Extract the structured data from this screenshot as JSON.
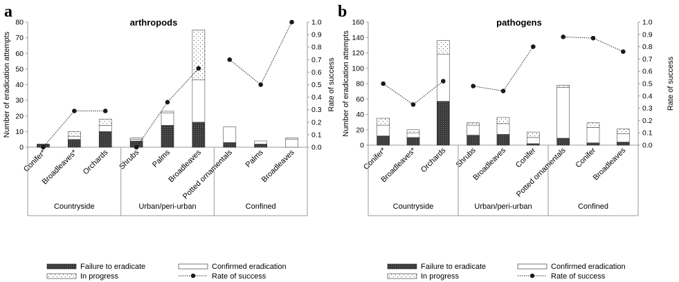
{
  "panels": [
    {
      "letter": "a",
      "title": "arthropods"
    },
    {
      "letter": "b",
      "title": "pathogens"
    }
  ],
  "legend": {
    "failure": "Failure to eradicate",
    "confirmed": "Confirmed eradication",
    "progress": "In progress",
    "rate": "Rate of success"
  },
  "colors": {
    "failure": "#3a3a3a",
    "line": "#222222",
    "axis": "#9a9a9a",
    "dot": "#1a1a1a"
  },
  "chart_data": [
    {
      "type": "bar",
      "stacked": true,
      "title": "arthropods",
      "ylabel": "Number of eradication attempts",
      "y2label": "Rate of success",
      "ylim": [
        0,
        80
      ],
      "yticks": [
        "0",
        "10",
        "20",
        "30",
        "40",
        "50",
        "60",
        "70",
        "80"
      ],
      "y2lim": [
        0,
        1
      ],
      "y2ticks": [
        "0.0",
        "0.1",
        "0.2",
        "0.3",
        "0.4",
        "0.5",
        "0.6",
        "0.7",
        "0.8",
        "0.9",
        "1.0"
      ],
      "categories": [
        "Conifer*",
        "Broadleaves*",
        "Orchards",
        "Shrubs",
        "Palms",
        "Broadleaves",
        "Potted ornamentals",
        "Palms",
        "Broadleaves"
      ],
      "groups": [
        {
          "name": "Countryside",
          "count": 3
        },
        {
          "name": "Urban/peri-urban",
          "count": 3
        },
        {
          "name": "Confined",
          "count": 3
        }
      ],
      "failure": [
        2,
        5,
        10,
        4,
        14,
        16,
        3,
        2,
        0
      ],
      "confirmed": [
        0,
        2,
        4,
        1,
        8,
        27,
        10,
        2,
        5
      ],
      "progress": [
        0,
        3,
        4,
        1,
        1,
        32,
        0,
        0,
        1
      ],
      "rate": [
        0.0,
        0.29,
        0.29,
        0.0,
        0.36,
        0.63,
        0.7,
        0.5,
        1.0
      ]
    },
    {
      "type": "bar",
      "stacked": true,
      "title": "pathogens",
      "ylabel": "Number of eradication attempts",
      "y2label": "Rate of success",
      "ylim": [
        0,
        160
      ],
      "yticks": [
        "0",
        "20",
        "40",
        "60",
        "80",
        "100",
        "120",
        "140",
        "160"
      ],
      "y2lim": [
        0,
        1
      ],
      "y2ticks": [
        "0.0",
        "0.1",
        "0.2",
        "0.3",
        "0.4",
        "0.5",
        "0.6",
        "0.7",
        "0.8",
        "0.9",
        "1.0"
      ],
      "categories": [
        "Conifer*",
        "Broadleaves*",
        "Orchards",
        "Shrubs",
        "Broadleaves",
        "Conifer",
        "Potted ornamentals",
        "Conifer",
        "Broadleaves"
      ],
      "groups": [
        {
          "name": "Countryside",
          "count": 3
        },
        {
          "name": "Urban/peri-urban",
          "count": 3
        },
        {
          "name": "Confined",
          "count": 3
        }
      ],
      "failure": [
        12,
        10,
        57,
        13,
        14,
        2,
        9,
        3,
        4
      ],
      "confirmed": [
        14,
        6,
        61,
        13,
        14,
        8,
        66,
        20,
        11
      ],
      "progress": [
        9,
        4,
        18,
        3,
        8,
        7,
        3,
        6,
        6
      ],
      "rate": [
        0.5,
        0.33,
        0.52,
        0.48,
        0.44,
        0.8,
        0.88,
        0.87,
        0.76
      ]
    }
  ]
}
